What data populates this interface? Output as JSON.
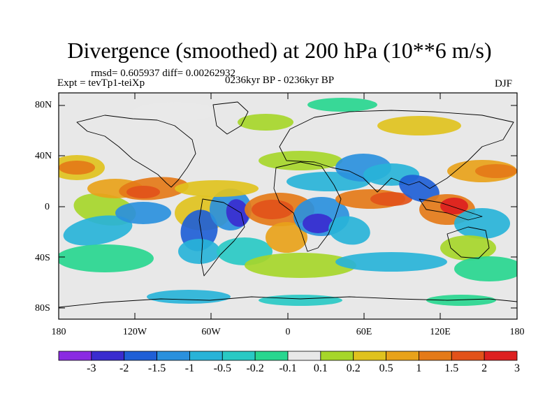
{
  "title": "Divergence (smoothed) at 200 hPa (10**6 m/s)",
  "stats": "rmsd= 0.605937 diff= 0.00262932",
  "experiment": "Expt = tevTp1-teiXp",
  "period": "0236kyr BP - 0236kyr BP",
  "season": "DJF",
  "axes": {
    "y_ticks": [
      "80N",
      "40N",
      "0",
      "40S",
      "80S"
    ],
    "x_ticks": [
      "180",
      "120W",
      "60W",
      "0",
      "60E",
      "120E",
      "180"
    ]
  },
  "colorbar": {
    "labels": [
      "-3",
      "-2",
      "-1.5",
      "-1",
      "-0.5",
      "-0.2",
      "-0.1",
      "0.1",
      "0.2",
      "0.5",
      "1",
      "1.5",
      "2",
      "3"
    ],
    "colors": [
      "#8a2be2",
      "#3a2ccf",
      "#1f5fd6",
      "#2a90dd",
      "#28b3d8",
      "#29c9c4",
      "#28d68f",
      "#e8e8e8",
      "#a6d62a",
      "#e0c21e",
      "#e8a21a",
      "#e47a18",
      "#e2521a",
      "#dd2020"
    ]
  },
  "field": {
    "background_color": "#e8e8e8",
    "coastline_color": "#000000"
  }
}
